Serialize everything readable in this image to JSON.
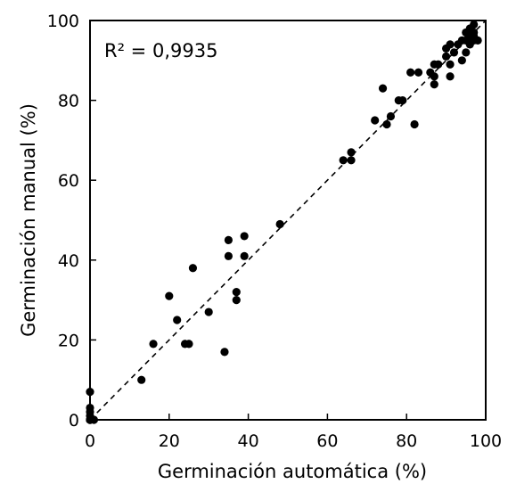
{
  "chart_data": {
    "type": "scatter",
    "title": "",
    "xlabel": "Germinación automática (%)",
    "ylabel": "Germinación manual (%)",
    "xlim": [
      0,
      100
    ],
    "ylim": [
      0,
      100
    ],
    "xticks": [
      0,
      20,
      40,
      60,
      80,
      100
    ],
    "yticks": [
      0,
      20,
      40,
      60,
      80,
      100
    ],
    "grid": false,
    "annotation": "R² = 0,9935",
    "reference_line": {
      "style": "dashed",
      "x": [
        0,
        100
      ],
      "y": [
        0,
        100
      ]
    },
    "colors": {
      "points": "#000000",
      "axes": "#000000"
    },
    "series": [
      {
        "points": [
          [
            0,
            0
          ],
          [
            0,
            0
          ],
          [
            0,
            0
          ],
          [
            0,
            0
          ],
          [
            0,
            1
          ],
          [
            0,
            2
          ],
          [
            0,
            3
          ],
          [
            0,
            7
          ],
          [
            1,
            0
          ],
          [
            13,
            10
          ],
          [
            16,
            19
          ],
          [
            20,
            31
          ],
          [
            22,
            25
          ],
          [
            24,
            19
          ],
          [
            25,
            19
          ],
          [
            26,
            38
          ],
          [
            30,
            27
          ],
          [
            34,
            17
          ],
          [
            35,
            41
          ],
          [
            35,
            45
          ],
          [
            37,
            30
          ],
          [
            37,
            32
          ],
          [
            39,
            41
          ],
          [
            39,
            46
          ],
          [
            48,
            49
          ],
          [
            64,
            65
          ],
          [
            66,
            65
          ],
          [
            66,
            67
          ],
          [
            72,
            75
          ],
          [
            74,
            83
          ],
          [
            75,
            74
          ],
          [
            76,
            76
          ],
          [
            78,
            80
          ],
          [
            79,
            80
          ],
          [
            81,
            87
          ],
          [
            82,
            74
          ],
          [
            83,
            87
          ],
          [
            86,
            87
          ],
          [
            87,
            86
          ],
          [
            87,
            84
          ],
          [
            87,
            89
          ],
          [
            88,
            89
          ],
          [
            90,
            91
          ],
          [
            90,
            93
          ],
          [
            91,
            86
          ],
          [
            91,
            89
          ],
          [
            91,
            94
          ],
          [
            92,
            92
          ],
          [
            93,
            94
          ],
          [
            94,
            95
          ],
          [
            94,
            90
          ],
          [
            95,
            95
          ],
          [
            95,
            92
          ],
          [
            95,
            97
          ],
          [
            96,
            94
          ],
          [
            96,
            96
          ],
          [
            96,
            98
          ],
          [
            97,
            95
          ],
          [
            97,
            96
          ],
          [
            97,
            97
          ],
          [
            97,
            99
          ],
          [
            98,
            95
          ]
        ]
      }
    ]
  }
}
